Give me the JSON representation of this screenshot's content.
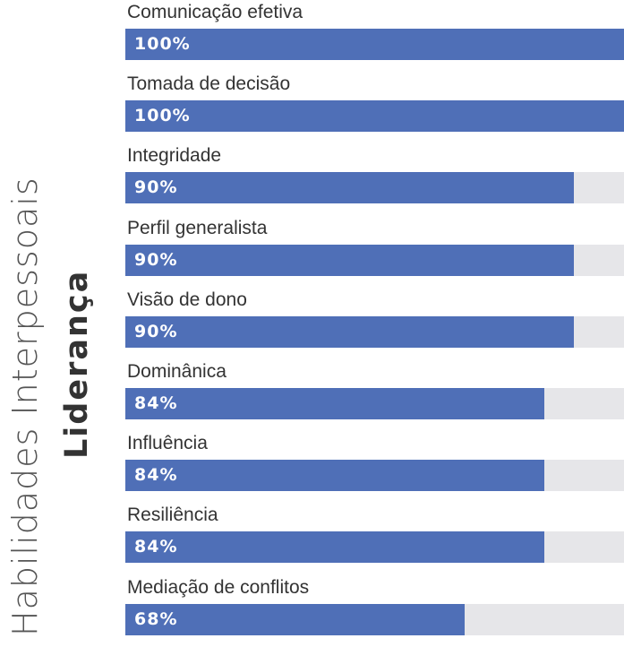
{
  "title": "Habilidades Interpessoais",
  "subtitle": "Liderança",
  "chart_data": {
    "type": "bar",
    "orientation": "horizontal",
    "title": "Habilidades Interpessoais",
    "subtitle": "Liderança",
    "xlim": [
      0,
      100
    ],
    "grid": false,
    "colors": {
      "bar": "#4f6fb7",
      "track": "#e6e6e9",
      "label_text": "#ffffff"
    },
    "categories": [
      "Comunicação efetiva",
      "Tomada de decisão",
      "Integridade",
      "Perfil generalista",
      "Visão de dono",
      "Dominânica",
      "Influência",
      "Resiliência",
      "Mediação de conflitos"
    ],
    "values": [
      100,
      100,
      90,
      90,
      90,
      84,
      84,
      84,
      68
    ],
    "value_labels": [
      "100%",
      "100%",
      "90%",
      "90%",
      "90%",
      "84%",
      "84%",
      "84%",
      "68%"
    ]
  }
}
